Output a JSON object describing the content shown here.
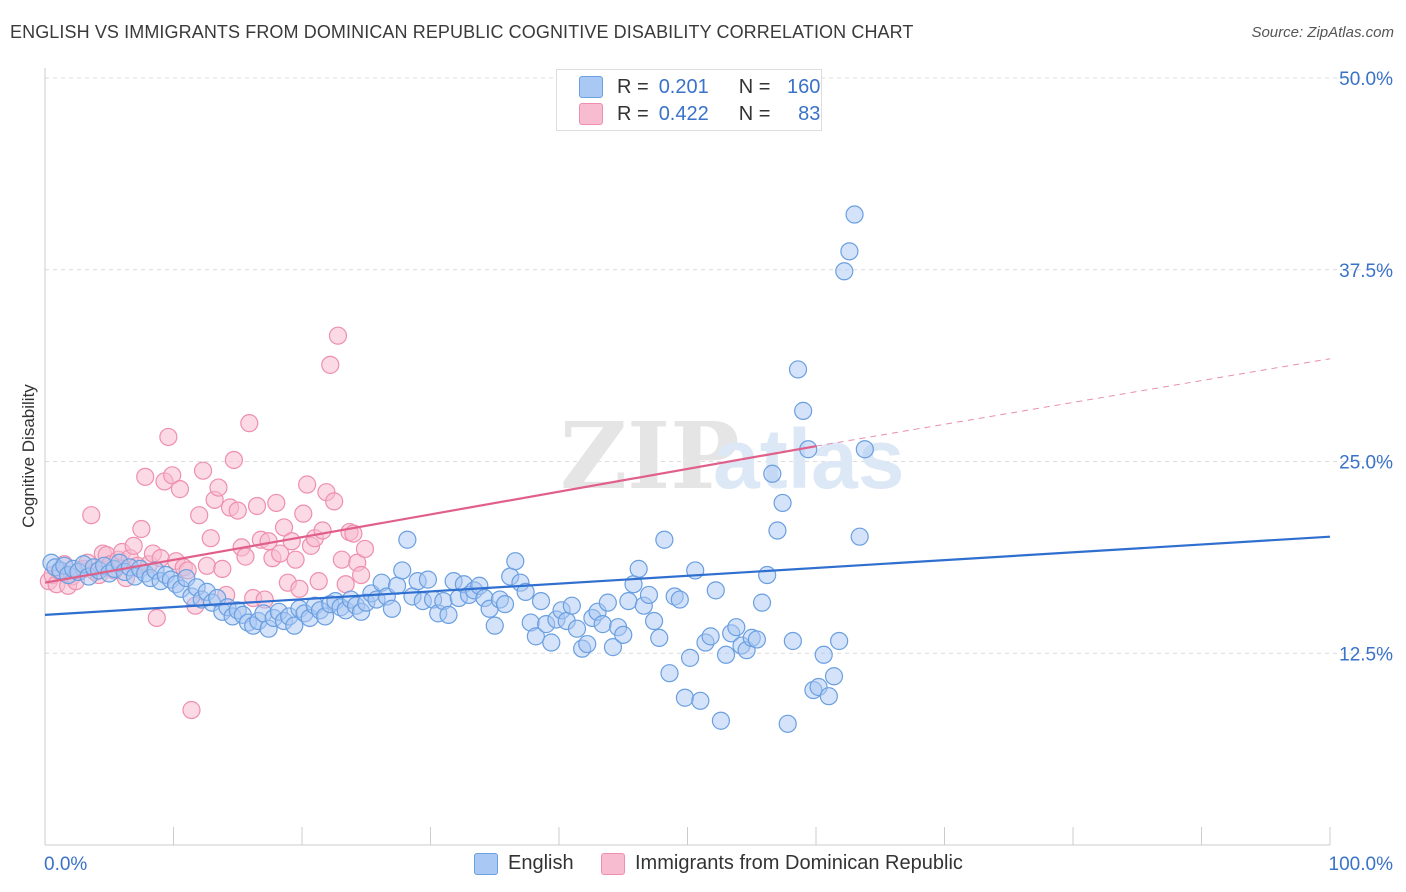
{
  "header": {
    "title": "ENGLISH VS IMMIGRANTS FROM DOMINICAN REPUBLIC COGNITIVE DISABILITY CORRELATION CHART",
    "source": "Source: ZipAtlas.com"
  },
  "watermark": {
    "zip": "ZIP",
    "atlas": "atlas"
  },
  "legend": {
    "rows": [
      {
        "r_label": "R =",
        "r_value": "0.201",
        "n_label": "N =",
        "n_value": "160"
      },
      {
        "r_label": "R =",
        "r_value": "0.422",
        "n_label": "N =",
        "n_value": "83"
      }
    ]
  },
  "colors": {
    "english_fill": "#a9c8f3",
    "english_stroke": "#6a9fe0",
    "english_line": "#2f6fcf",
    "dominican_fill": "#f7bcd0",
    "dominican_stroke": "#ee8fae",
    "dominican_line": "#e0608a",
    "axis_text": "#3a72c8",
    "grid": "#dcdcdc"
  },
  "chart_data": {
    "type": "scatter",
    "title": "ENGLISH VS IMMIGRANTS FROM DOMINICAN REPUBLIC COGNITIVE DISABILITY CORRELATION CHART",
    "xlabel": "",
    "ylabel": "Cognitive Disability",
    "xlim": [
      0,
      100
    ],
    "ylim": [
      0,
      50
    ],
    "x_tick_labels": [
      "0.0%",
      "100.0%"
    ],
    "y_ticks": [
      12.5,
      25.0,
      37.5,
      50.0
    ],
    "y_tick_labels": [
      "12.5%",
      "25.0%",
      "37.5%",
      "50.0%"
    ],
    "grid": true,
    "legend_placement": "top-center",
    "series": [
      {
        "name": "English",
        "r": 0.201,
        "n": 160,
        "trend": {
          "x": [
            0,
            100
          ],
          "y": [
            15.0,
            20.1
          ]
        },
        "points": [
          [
            0.5,
            18.4
          ],
          [
            0.8,
            18.1
          ],
          [
            1.2,
            17.9
          ],
          [
            1.5,
            18.2
          ],
          [
            1.8,
            17.6
          ],
          [
            2.2,
            18.0
          ],
          [
            2.6,
            17.8
          ],
          [
            3.0,
            18.3
          ],
          [
            3.4,
            17.5
          ],
          [
            3.8,
            18.1
          ],
          [
            4.2,
            17.9
          ],
          [
            4.6,
            18.2
          ],
          [
            5.0,
            17.7
          ],
          [
            5.4,
            18.0
          ],
          [
            5.8,
            18.4
          ],
          [
            6.2,
            17.8
          ],
          [
            6.6,
            18.1
          ],
          [
            7.0,
            17.5
          ],
          [
            7.4,
            18.0
          ],
          [
            7.8,
            17.7
          ],
          [
            8.2,
            17.4
          ],
          [
            8.6,
            17.9
          ],
          [
            9.0,
            17.2
          ],
          [
            9.4,
            17.6
          ],
          [
            9.8,
            17.3
          ],
          [
            10.2,
            17.0
          ],
          [
            10.6,
            16.7
          ],
          [
            11.0,
            17.4
          ],
          [
            11.4,
            16.2
          ],
          [
            11.8,
            16.8
          ],
          [
            12.2,
            16.0
          ],
          [
            12.6,
            16.5
          ],
          [
            13.0,
            15.8
          ],
          [
            13.4,
            16.1
          ],
          [
            13.8,
            15.2
          ],
          [
            14.2,
            15.5
          ],
          [
            14.6,
            14.9
          ],
          [
            15.0,
            15.3
          ],
          [
            15.4,
            15.0
          ],
          [
            15.8,
            14.5
          ],
          [
            16.2,
            14.3
          ],
          [
            16.6,
            14.6
          ],
          [
            17.0,
            15.1
          ],
          [
            17.4,
            14.1
          ],
          [
            17.8,
            14.8
          ],
          [
            18.2,
            15.2
          ],
          [
            18.6,
            14.6
          ],
          [
            19.0,
            14.9
          ],
          [
            19.4,
            14.3
          ],
          [
            19.8,
            15.4
          ],
          [
            20.2,
            15.1
          ],
          [
            20.6,
            14.8
          ],
          [
            21.0,
            15.6
          ],
          [
            21.4,
            15.3
          ],
          [
            21.8,
            14.9
          ],
          [
            22.2,
            15.7
          ],
          [
            22.6,
            15.9
          ],
          [
            23.0,
            15.5
          ],
          [
            23.4,
            15.3
          ],
          [
            23.8,
            16.0
          ],
          [
            24.2,
            15.6
          ],
          [
            24.6,
            15.2
          ],
          [
            25.0,
            15.8
          ],
          [
            25.4,
            16.4
          ],
          [
            25.8,
            16.0
          ],
          [
            26.2,
            17.1
          ],
          [
            26.6,
            16.2
          ],
          [
            27.0,
            15.4
          ],
          [
            27.4,
            16.9
          ],
          [
            27.8,
            17.9
          ],
          [
            28.2,
            19.9
          ],
          [
            28.6,
            16.2
          ],
          [
            29.0,
            17.2
          ],
          [
            29.4,
            15.9
          ],
          [
            29.8,
            17.3
          ],
          [
            30.2,
            16.0
          ],
          [
            30.6,
            15.1
          ],
          [
            31.0,
            15.9
          ],
          [
            31.4,
            15.0
          ],
          [
            31.8,
            17.2
          ],
          [
            32.2,
            16.1
          ],
          [
            32.6,
            17.0
          ],
          [
            33.0,
            16.3
          ],
          [
            33.4,
            16.6
          ],
          [
            33.8,
            16.9
          ],
          [
            34.2,
            16.1
          ],
          [
            34.6,
            15.4
          ],
          [
            35.0,
            14.3
          ],
          [
            35.4,
            16.0
          ],
          [
            35.8,
            15.7
          ],
          [
            36.2,
            17.5
          ],
          [
            36.6,
            18.5
          ],
          [
            37.0,
            17.1
          ],
          [
            37.4,
            16.5
          ],
          [
            37.8,
            14.5
          ],
          [
            38.2,
            13.6
          ],
          [
            38.6,
            15.9
          ],
          [
            39.0,
            14.4
          ],
          [
            39.4,
            13.2
          ],
          [
            39.8,
            14.7
          ],
          [
            40.2,
            15.3
          ],
          [
            40.6,
            14.6
          ],
          [
            41.0,
            15.6
          ],
          [
            41.4,
            14.1
          ],
          [
            41.8,
            12.8
          ],
          [
            42.2,
            13.1
          ],
          [
            42.6,
            14.8
          ],
          [
            43.0,
            15.2
          ],
          [
            43.4,
            14.4
          ],
          [
            43.8,
            15.8
          ],
          [
            44.2,
            12.9
          ],
          [
            44.6,
            14.2
          ],
          [
            45.0,
            13.7
          ],
          [
            45.4,
            15.9
          ],
          [
            45.8,
            17.0
          ],
          [
            46.2,
            18.0
          ],
          [
            46.6,
            15.6
          ],
          [
            47.0,
            16.3
          ],
          [
            47.4,
            14.6
          ],
          [
            47.8,
            13.5
          ],
          [
            48.2,
            19.9
          ],
          [
            48.6,
            11.2
          ],
          [
            49.0,
            16.2
          ],
          [
            49.4,
            16.0
          ],
          [
            49.8,
            9.6
          ],
          [
            50.2,
            12.2
          ],
          [
            50.6,
            17.9
          ],
          [
            51.0,
            9.4
          ],
          [
            51.4,
            13.2
          ],
          [
            51.8,
            13.6
          ],
          [
            52.2,
            16.6
          ],
          [
            52.6,
            8.1
          ],
          [
            53.0,
            12.4
          ],
          [
            53.4,
            13.8
          ],
          [
            53.8,
            14.2
          ],
          [
            54.2,
            13.0
          ],
          [
            54.6,
            12.7
          ],
          [
            55.0,
            13.5
          ],
          [
            55.4,
            13.4
          ],
          [
            55.8,
            15.8
          ],
          [
            56.2,
            17.6
          ],
          [
            56.6,
            24.2
          ],
          [
            57.0,
            20.5
          ],
          [
            57.4,
            22.3
          ],
          [
            57.8,
            7.9
          ],
          [
            58.2,
            13.3
          ],
          [
            58.6,
            31.0
          ],
          [
            59.0,
            28.3
          ],
          [
            59.4,
            25.8
          ],
          [
            59.8,
            10.1
          ],
          [
            60.2,
            10.3
          ],
          [
            60.6,
            12.4
          ],
          [
            61.0,
            9.7
          ],
          [
            61.4,
            11.0
          ],
          [
            61.8,
            13.3
          ],
          [
            62.2,
            37.4
          ],
          [
            62.6,
            38.7
          ],
          [
            63.0,
            41.1
          ],
          [
            63.4,
            20.1
          ],
          [
            63.8,
            25.8
          ]
        ]
      },
      {
        "name": "Immigrants from Dominican Republic",
        "r": 0.422,
        "n": 83,
        "trend": {
          "x": [
            0,
            60
          ],
          "y": [
            17.1,
            26.0
          ]
        },
        "trend_ext": {
          "x": [
            60,
            100
          ],
          "y": [
            26.0,
            31.7
          ]
        },
        "points": [
          [
            0.3,
            17.2
          ],
          [
            0.6,
            17.6
          ],
          [
            0.9,
            17.0
          ],
          [
            1.2,
            17.8
          ],
          [
            1.5,
            18.3
          ],
          [
            1.8,
            16.9
          ],
          [
            2.1,
            17.5
          ],
          [
            2.4,
            17.2
          ],
          [
            2.7,
            17.9
          ],
          [
            3.0,
            18.0
          ],
          [
            3.3,
            18.4
          ],
          [
            3.6,
            21.5
          ],
          [
            3.9,
            17.8
          ],
          [
            4.2,
            17.6
          ],
          [
            4.5,
            19.0
          ],
          [
            4.8,
            18.9
          ],
          [
            5.1,
            18.3
          ],
          [
            5.4,
            17.9
          ],
          [
            5.7,
            18.6
          ],
          [
            6.0,
            19.1
          ],
          [
            6.3,
            17.4
          ],
          [
            6.6,
            18.7
          ],
          [
            6.9,
            19.5
          ],
          [
            7.2,
            18.2
          ],
          [
            7.5,
            20.6
          ],
          [
            7.8,
            24.0
          ],
          [
            8.1,
            18.3
          ],
          [
            8.4,
            19.0
          ],
          [
            8.7,
            14.8
          ],
          [
            9.0,
            18.7
          ],
          [
            9.3,
            23.7
          ],
          [
            9.6,
            26.6
          ],
          [
            9.9,
            24.1
          ],
          [
            10.2,
            18.5
          ],
          [
            10.5,
            23.2
          ],
          [
            10.8,
            18.1
          ],
          [
            11.1,
            17.9
          ],
          [
            11.4,
            8.8
          ],
          [
            11.7,
            15.6
          ],
          [
            12.0,
            21.5
          ],
          [
            12.3,
            24.4
          ],
          [
            12.6,
            18.2
          ],
          [
            12.9,
            20.0
          ],
          [
            13.2,
            22.5
          ],
          [
            13.5,
            23.3
          ],
          [
            13.8,
            18.0
          ],
          [
            14.1,
            16.3
          ],
          [
            14.4,
            22.0
          ],
          [
            14.7,
            25.1
          ],
          [
            15.0,
            21.8
          ],
          [
            15.3,
            19.4
          ],
          [
            15.6,
            18.8
          ],
          [
            15.9,
            27.5
          ],
          [
            16.2,
            16.1
          ],
          [
            16.5,
            22.1
          ],
          [
            16.8,
            19.9
          ],
          [
            17.1,
            16.0
          ],
          [
            17.4,
            19.8
          ],
          [
            17.7,
            18.7
          ],
          [
            18.0,
            22.3
          ],
          [
            18.3,
            19.0
          ],
          [
            18.6,
            20.7
          ],
          [
            18.9,
            17.1
          ],
          [
            19.2,
            19.8
          ],
          [
            19.5,
            18.6
          ],
          [
            19.8,
            16.7
          ],
          [
            20.1,
            21.6
          ],
          [
            20.4,
            23.5
          ],
          [
            20.7,
            19.5
          ],
          [
            21.0,
            20.0
          ],
          [
            21.3,
            17.2
          ],
          [
            21.6,
            20.5
          ],
          [
            21.9,
            23.0
          ],
          [
            22.2,
            31.3
          ],
          [
            22.5,
            22.4
          ],
          [
            22.8,
            33.2
          ],
          [
            23.1,
            18.6
          ],
          [
            23.4,
            17.0
          ],
          [
            23.7,
            20.4
          ],
          [
            24.0,
            20.3
          ],
          [
            24.3,
            18.4
          ],
          [
            24.6,
            17.6
          ],
          [
            24.9,
            19.3
          ]
        ]
      }
    ]
  }
}
